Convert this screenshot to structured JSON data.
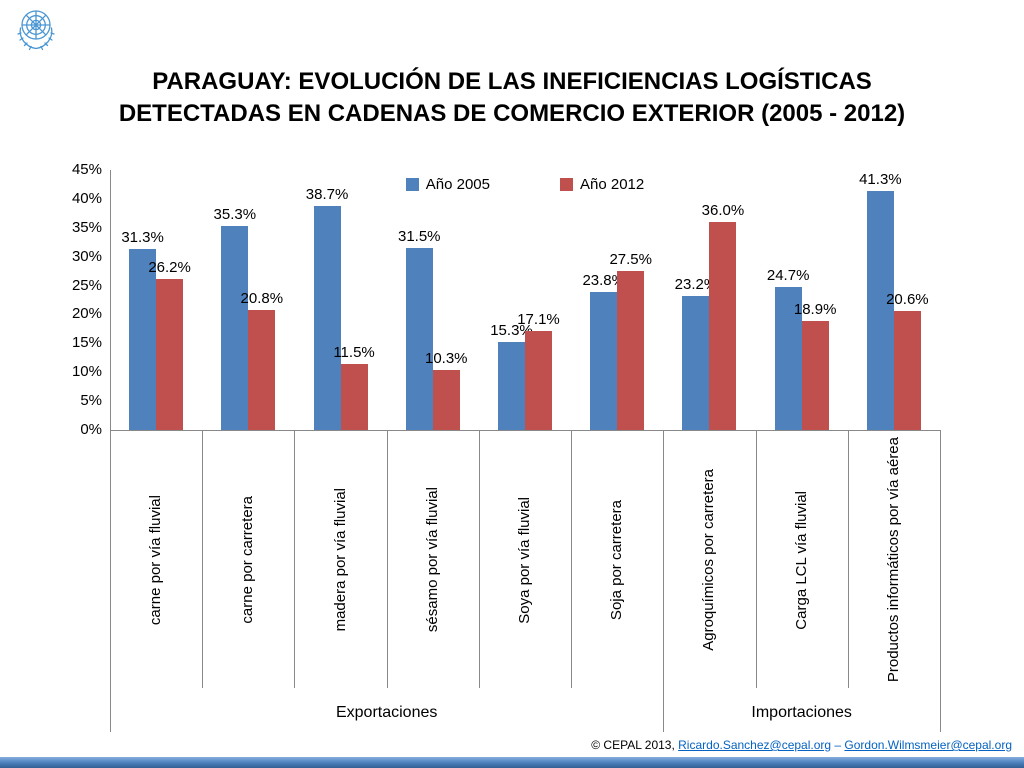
{
  "slide": {
    "title_line1": "PARAGUAY: EVOLUCIÓN DE LAS INEFICIENCIAS LOGÍSTICAS",
    "title_line2": "DETECTADAS EN CADENAS DE COMERCIO EXTERIOR (2005 - 2012)",
    "footer": {
      "prefix": "© CEPAL 2013, ",
      "link1": "Ricardo.Sanchez@cepal.org",
      "separator": " – ",
      "link2": "Gordon.Wilmsmeier@cepal.org"
    }
  },
  "colors": {
    "series_2005": "#4F81BD",
    "series_2012": "#C0504D",
    "axis_line": "#898989",
    "link": "#0563C1",
    "footer_bar": "#4A7EBB"
  },
  "chart_data": {
    "type": "bar",
    "title": "PARAGUAY: EVOLUCIÓN DE LAS INEFICIENCIAS LOGÍSTICAS DETECTADAS EN CADENAS DE COMERCIO EXTERIOR (2005 - 2012)",
    "xlabel": "",
    "ylabel": "",
    "ylim": [
      0,
      45
    ],
    "ytick_step": 5,
    "ytick_labels": [
      "0%",
      "5%",
      "10%",
      "15%",
      "20%",
      "25%",
      "30%",
      "35%",
      "40%",
      "45%"
    ],
    "grid": false,
    "legend_position": "top-center",
    "categories": [
      "carne por vía fluvial",
      "carne por carretera",
      "madera por vía fluvial",
      "sésamo por vía fluvial",
      "Soya por vía fluvial",
      "Soja por carretera",
      "Agroquímicos por carretera",
      "Carga LCL vía fluvial",
      "Productos informáticos por vía aérea"
    ],
    "groups": [
      {
        "label": "Exportaciones",
        "span": 6
      },
      {
        "label": "Importaciones",
        "span": 3
      }
    ],
    "series": [
      {
        "name": "Año 2005",
        "color": "#4F81BD",
        "values": [
          31.3,
          35.3,
          38.7,
          31.5,
          15.3,
          23.8,
          23.2,
          24.7,
          41.3
        ]
      },
      {
        "name": "Año 2012",
        "color": "#C0504D",
        "values": [
          26.2,
          20.8,
          11.5,
          10.3,
          17.1,
          27.5,
          36.0,
          18.9,
          20.6
        ]
      }
    ]
  }
}
